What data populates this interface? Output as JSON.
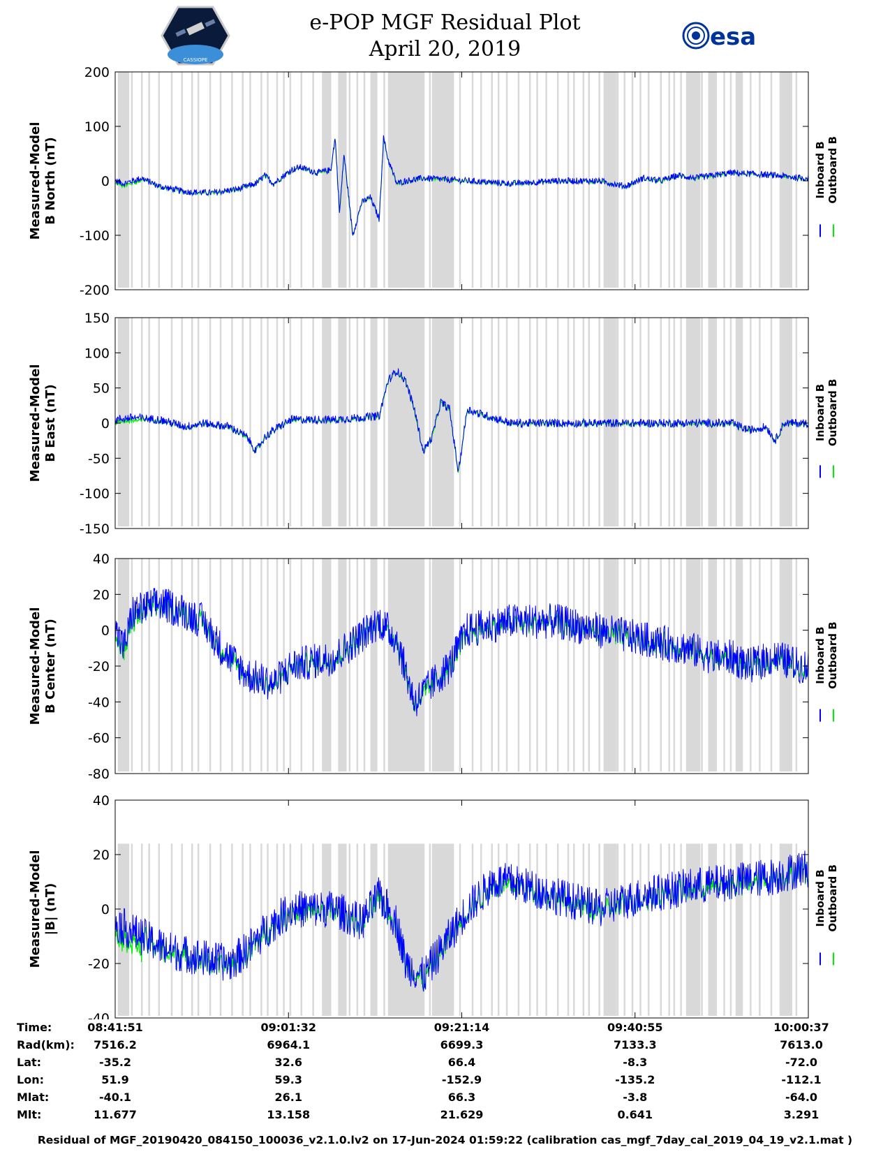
{
  "title_line1": "e-POP MGF Residual Plot",
  "title_line2": "April 20, 2019",
  "esa_logo_text": "esa",
  "cassiope_logo_text": "CASSIOPE",
  "colors": {
    "inboard": "#0000ff",
    "outboard": "#00ee00",
    "shade": "#d9d9d9"
  },
  "chart_data": [
    {
      "type": "line",
      "ylabel_line1": "Measured-Model",
      "ylabel_line2": "B North (nT)",
      "ylim": [
        -200,
        200
      ],
      "yticks": [
        200,
        100,
        0,
        -100,
        -200
      ],
      "legend": [
        "Inboard B",
        "Outboard B"
      ],
      "series_names": [
        "Inboard B",
        "Outboard B"
      ],
      "trend_minutes": [
        0,
        1,
        3,
        5,
        8,
        11,
        14,
        16,
        17,
        18,
        20,
        21,
        22,
        23,
        24.5,
        25,
        25.5,
        26,
        27,
        28,
        29,
        30,
        30.5,
        31,
        32,
        33,
        35,
        40,
        45,
        50,
        55,
        58,
        60,
        62,
        64,
        66,
        70,
        75,
        78
      ],
      "trend_values": [
        0,
        -5,
        5,
        -10,
        -20,
        -22,
        -15,
        -5,
        10,
        -5,
        20,
        25,
        20,
        15,
        20,
        80,
        -60,
        50,
        -100,
        -40,
        -30,
        -70,
        80,
        40,
        -5,
        0,
        5,
        0,
        -5,
        0,
        0,
        -10,
        5,
        0,
        10,
        5,
        15,
        10,
        5
      ],
      "noise": 6
    },
    {
      "type": "line",
      "ylabel_line1": "Measured-Model",
      "ylabel_line2": "B East (nT)",
      "ylim": [
        -150,
        150
      ],
      "yticks": [
        150,
        100,
        50,
        0,
        -50,
        -100,
        -150
      ],
      "legend": [
        "Inboard B",
        "Outboard B"
      ],
      "series_names": [
        "Inboard B",
        "Outboard B"
      ],
      "trend_minutes": [
        0,
        2,
        5,
        8,
        10,
        13,
        15,
        16,
        17,
        18,
        20,
        25,
        30,
        31,
        32,
        33,
        34,
        35,
        36,
        37,
        38,
        39,
        40,
        41,
        45,
        55,
        65,
        70,
        72,
        74,
        75,
        76,
        78
      ],
      "trend_values": [
        5,
        8,
        5,
        -5,
        0,
        -5,
        -20,
        -40,
        -20,
        -10,
        5,
        5,
        10,
        60,
        75,
        60,
        20,
        -40,
        -20,
        30,
        20,
        -70,
        20,
        15,
        0,
        0,
        0,
        0,
        -10,
        -5,
        -25,
        0,
        0
      ],
      "noise": 6
    },
    {
      "type": "line",
      "ylabel_line1": "Measured-Model",
      "ylabel_line2": "B Center (nT)",
      "ylim": [
        -80,
        40
      ],
      "yticks": [
        40,
        20,
        0,
        -20,
        -40,
        -60,
        -80
      ],
      "legend": [
        "Inboard B",
        "Outboard B"
      ],
      "series_names": [
        "Inboard B",
        "Outboard B"
      ],
      "trend_minutes": [
        0,
        1,
        2,
        5,
        8,
        10,
        12,
        15,
        18,
        20,
        25,
        30,
        32,
        34,
        35,
        38,
        40,
        45,
        50,
        55,
        60,
        65,
        68,
        70,
        72,
        75,
        78
      ],
      "trend_values": [
        0,
        -10,
        10,
        15,
        10,
        5,
        -10,
        -25,
        -30,
        -20,
        -15,
        5,
        -5,
        -40,
        -35,
        -20,
        0,
        5,
        5,
        0,
        -5,
        -10,
        -15,
        -15,
        -20,
        -15,
        -20
      ],
      "noise": 10
    },
    {
      "type": "line",
      "ylabel_line1": "Measured-Model",
      "ylabel_line2": "|B| (nT)",
      "ylim": [
        -40,
        40
      ],
      "yticks": [
        40,
        20,
        0,
        -20,
        -40
      ],
      "legend": [
        "Inboard B",
        "Outboard B"
      ],
      "series_names": [
        "Inboard B",
        "Outboard B"
      ],
      "trend_minutes": [
        0,
        3,
        6,
        10,
        13,
        15,
        18,
        20,
        25,
        28,
        29,
        30,
        32,
        33,
        35,
        36,
        38,
        40,
        43,
        45,
        50,
        55,
        60,
        65,
        70,
        75,
        78
      ],
      "trend_values": [
        -5,
        -10,
        -15,
        -18,
        -20,
        -15,
        -5,
        0,
        0,
        -5,
        0,
        5,
        -5,
        -20,
        -25,
        -20,
        -10,
        0,
        10,
        10,
        5,
        0,
        5,
        8,
        10,
        12,
        15
      ],
      "noise": 7
    }
  ],
  "time_span_minutes": 78.77,
  "info_labels": [
    "Time:",
    "Rad(km):",
    "Lat:",
    "Lon:",
    "Mlat:",
    "Mlt:"
  ],
  "info_columns": [
    [
      "08:41:51",
      "7516.2",
      "-35.2",
      "51.9",
      "-40.1",
      "11.677"
    ],
    [
      "09:01:32",
      "6964.1",
      "32.6",
      "59.3",
      "26.1",
      "13.158"
    ],
    [
      "09:21:14",
      "6699.3",
      "66.4",
      "-152.9",
      "66.3",
      "21.629"
    ],
    [
      "09:40:55",
      "7133.3",
      "-8.3",
      "-135.2",
      "-3.8",
      "0.641"
    ],
    [
      "10:00:37",
      "7613.0",
      "-72.0",
      "-112.1",
      "-64.0",
      "3.291"
    ]
  ],
  "footer": "Residual of MGF_20190420_084150_100036_v2.1.0.lv2 on 17-Jun-2024 01:59:22 (calibration cas_mgf_7day_cal_2019_04_19_v2.1.mat )"
}
